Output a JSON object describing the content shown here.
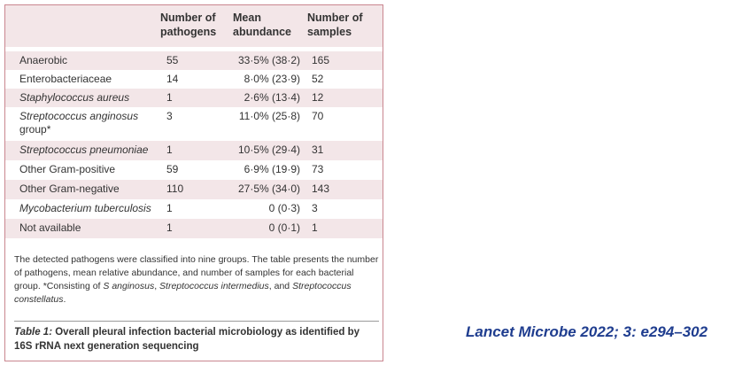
{
  "table": {
    "headers": {
      "pathogens_l1": "Number of",
      "pathogens_l2": "pathogens",
      "abundance_l1": "Mean",
      "abundance_l2": "abundance",
      "samples_l1": "Number of",
      "samples_l2": "samples"
    },
    "rows": [
      {
        "name": "Anaerobic",
        "italic": false,
        "pathogens": "55",
        "abundance": "33·5% (38·2)",
        "samples": "165"
      },
      {
        "name": "Enterobacteriaceae",
        "italic": false,
        "pathogens": "14",
        "abundance": "8·0% (23·9)",
        "samples": "52"
      },
      {
        "name": "Staphylococcus aureus",
        "italic": true,
        "pathogens": "1",
        "abundance": "2·6% (13·4)",
        "samples": "12"
      },
      {
        "name": "Streptococcus anginosus",
        "name2": "group*",
        "italic": true,
        "pathogens": "3",
        "abundance": "11·0% (25·8)",
        "samples": "70"
      },
      {
        "name": "Streptococcus pneumoniae",
        "italic": true,
        "pathogens": "1",
        "abundance": "10·5% (29·4)",
        "samples": "31"
      },
      {
        "name": "Other Gram-positive",
        "italic": false,
        "pathogens": "59",
        "abundance": "6·9% (19·9)",
        "samples": "73"
      },
      {
        "name": "Other Gram-negative",
        "italic": false,
        "pathogens": "110",
        "abundance": "27·5% (34·0)",
        "samples": "143"
      },
      {
        "name": "Mycobacterium tuberculosis",
        "italic": true,
        "pathogens": "1",
        "abundance": "0 (0·3)",
        "samples": "3"
      },
      {
        "name": "Not available",
        "italic": false,
        "pathogens": "1",
        "abundance": "0 (0·1)",
        "samples": "1"
      }
    ]
  },
  "footnote": {
    "part1": "The detected pathogens were classified into nine groups. The table presents the number of pathogens, mean relative abundance, and number of samples for each bacterial group. *Consisting of ",
    "s_anginosus": "S anginosus",
    "sep1": ", ",
    "s_intermedius": "Streptococcus intermedius",
    "sep2": ", and ",
    "s_constellatus": "Streptococcus constellatus",
    "end": "."
  },
  "caption": {
    "label": "Table 1:",
    "text": " Overall pleural infection bacterial microbiology as identified by 16S rRNA next generation sequencing"
  },
  "citation": "Lancet Microbe 2022; 3: e294–302"
}
